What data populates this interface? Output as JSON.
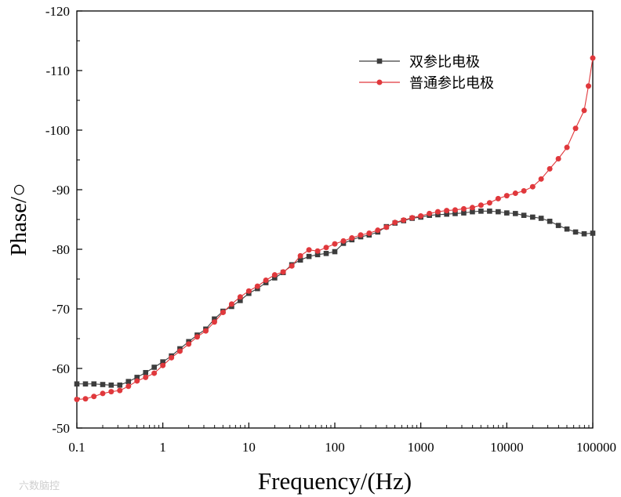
{
  "chart_data": {
    "type": "line",
    "title": "",
    "xlabel": "Frequency/(Hz)",
    "ylabel": "Phase/○",
    "xscale": "log",
    "xlim": [
      0.1,
      100000
    ],
    "ylim": [
      -50,
      -120
    ],
    "x_ticks": [
      0.1,
      1,
      10,
      100,
      1000,
      10000,
      100000
    ],
    "x_tick_labels": [
      "0.1",
      "1",
      "10",
      "100",
      "1000",
      "10000",
      "100000"
    ],
    "y_ticks": [
      -50,
      -60,
      -70,
      -80,
      -90,
      -100,
      -110,
      -120
    ],
    "y_tick_labels": [
      "-50",
      "-60",
      "-70",
      "-80",
      "-90",
      "-100",
      "-110",
      "-120"
    ],
    "legend_position": "top-right",
    "series": [
      {
        "name": "双参比电极",
        "color": "#3d3d3d",
        "marker": "square",
        "points": [
          [
            0.1,
            -57.4
          ],
          [
            0.126,
            -57.4
          ],
          [
            0.158,
            -57.4
          ],
          [
            0.2,
            -57.3
          ],
          [
            0.251,
            -57.2
          ],
          [
            0.316,
            -57.2
          ],
          [
            0.398,
            -57.8
          ],
          [
            0.501,
            -58.5
          ],
          [
            0.631,
            -59.3
          ],
          [
            0.794,
            -60.2
          ],
          [
            1.0,
            -61.1
          ],
          [
            1.26,
            -62.1
          ],
          [
            1.58,
            -63.3
          ],
          [
            2.0,
            -64.5
          ],
          [
            2.51,
            -65.6
          ],
          [
            3.16,
            -66.6
          ],
          [
            3.98,
            -68.3
          ],
          [
            5.01,
            -69.6
          ],
          [
            6.31,
            -70.4
          ],
          [
            7.94,
            -71.4
          ],
          [
            10.0,
            -72.6
          ],
          [
            12.6,
            -73.4
          ],
          [
            15.8,
            -74.4
          ],
          [
            20.0,
            -75.2
          ],
          [
            25.1,
            -76.1
          ],
          [
            31.6,
            -77.4
          ],
          [
            39.8,
            -78.2
          ],
          [
            50.1,
            -78.8
          ],
          [
            63.1,
            -79.1
          ],
          [
            79.4,
            -79.3
          ],
          [
            100,
            -79.6
          ],
          [
            126,
            -81.0
          ],
          [
            158,
            -81.6
          ],
          [
            200,
            -82.1
          ],
          [
            251,
            -82.4
          ],
          [
            316,
            -82.9
          ],
          [
            398,
            -83.8
          ],
          [
            501,
            -84.4
          ],
          [
            631,
            -84.8
          ],
          [
            794,
            -85.2
          ],
          [
            1000,
            -85.4
          ],
          [
            1260,
            -85.7
          ],
          [
            1580,
            -85.8
          ],
          [
            2000,
            -85.9
          ],
          [
            2510,
            -86.0
          ],
          [
            3160,
            -86.1
          ],
          [
            3980,
            -86.3
          ],
          [
            5010,
            -86.4
          ],
          [
            6310,
            -86.4
          ],
          [
            7940,
            -86.3
          ],
          [
            10000,
            -86.1
          ],
          [
            12600,
            -86.0
          ],
          [
            15800,
            -85.7
          ],
          [
            20000,
            -85.4
          ],
          [
            25100,
            -85.2
          ],
          [
            31600,
            -84.7
          ],
          [
            39800,
            -84.0
          ],
          [
            50100,
            -83.4
          ],
          [
            63100,
            -82.9
          ],
          [
            79400,
            -82.6
          ],
          [
            100000,
            -82.7
          ]
        ]
      },
      {
        "name": "普通参比电极",
        "color": "#e0383c",
        "marker": "circle",
        "points": [
          [
            0.1,
            -54.8
          ],
          [
            0.126,
            -54.9
          ],
          [
            0.158,
            -55.3
          ],
          [
            0.2,
            -55.8
          ],
          [
            0.251,
            -56.1
          ],
          [
            0.316,
            -56.3
          ],
          [
            0.398,
            -57.0
          ],
          [
            0.501,
            -57.9
          ],
          [
            0.631,
            -58.5
          ],
          [
            0.794,
            -59.2
          ],
          [
            1.0,
            -60.5
          ],
          [
            1.26,
            -61.8
          ],
          [
            1.58,
            -62.9
          ],
          [
            2.0,
            -64.1
          ],
          [
            2.51,
            -65.3
          ],
          [
            3.16,
            -66.3
          ],
          [
            3.98,
            -67.8
          ],
          [
            5.01,
            -69.4
          ],
          [
            6.31,
            -70.8
          ],
          [
            7.94,
            -72.0
          ],
          [
            10.0,
            -73.0
          ],
          [
            12.6,
            -73.8
          ],
          [
            15.8,
            -74.8
          ],
          [
            20.0,
            -75.7
          ],
          [
            25.1,
            -76.2
          ],
          [
            31.6,
            -77.2
          ],
          [
            39.8,
            -78.9
          ],
          [
            50.1,
            -79.9
          ],
          [
            63.1,
            -79.7
          ],
          [
            79.4,
            -80.3
          ],
          [
            100,
            -80.9
          ],
          [
            126,
            -81.4
          ],
          [
            158,
            -81.9
          ],
          [
            200,
            -82.4
          ],
          [
            251,
            -82.7
          ],
          [
            316,
            -83.2
          ],
          [
            398,
            -83.7
          ],
          [
            501,
            -84.5
          ],
          [
            631,
            -84.9
          ],
          [
            794,
            -85.3
          ],
          [
            1000,
            -85.6
          ],
          [
            1260,
            -86.0
          ],
          [
            1580,
            -86.3
          ],
          [
            2000,
            -86.5
          ],
          [
            2510,
            -86.6
          ],
          [
            3160,
            -86.8
          ],
          [
            3980,
            -87.0
          ],
          [
            5010,
            -87.4
          ],
          [
            6310,
            -87.8
          ],
          [
            7940,
            -88.5
          ],
          [
            10000,
            -89.0
          ],
          [
            12600,
            -89.4
          ],
          [
            15800,
            -89.8
          ],
          [
            20000,
            -90.5
          ],
          [
            25100,
            -91.8
          ],
          [
            31600,
            -93.5
          ],
          [
            39800,
            -95.2
          ],
          [
            50100,
            -97.1
          ],
          [
            63100,
            -100.3
          ],
          [
            79400,
            -103.3
          ],
          [
            89100,
            -107.4
          ],
          [
            100000,
            -112.1
          ]
        ]
      }
    ]
  },
  "watermark": "六数脑控"
}
